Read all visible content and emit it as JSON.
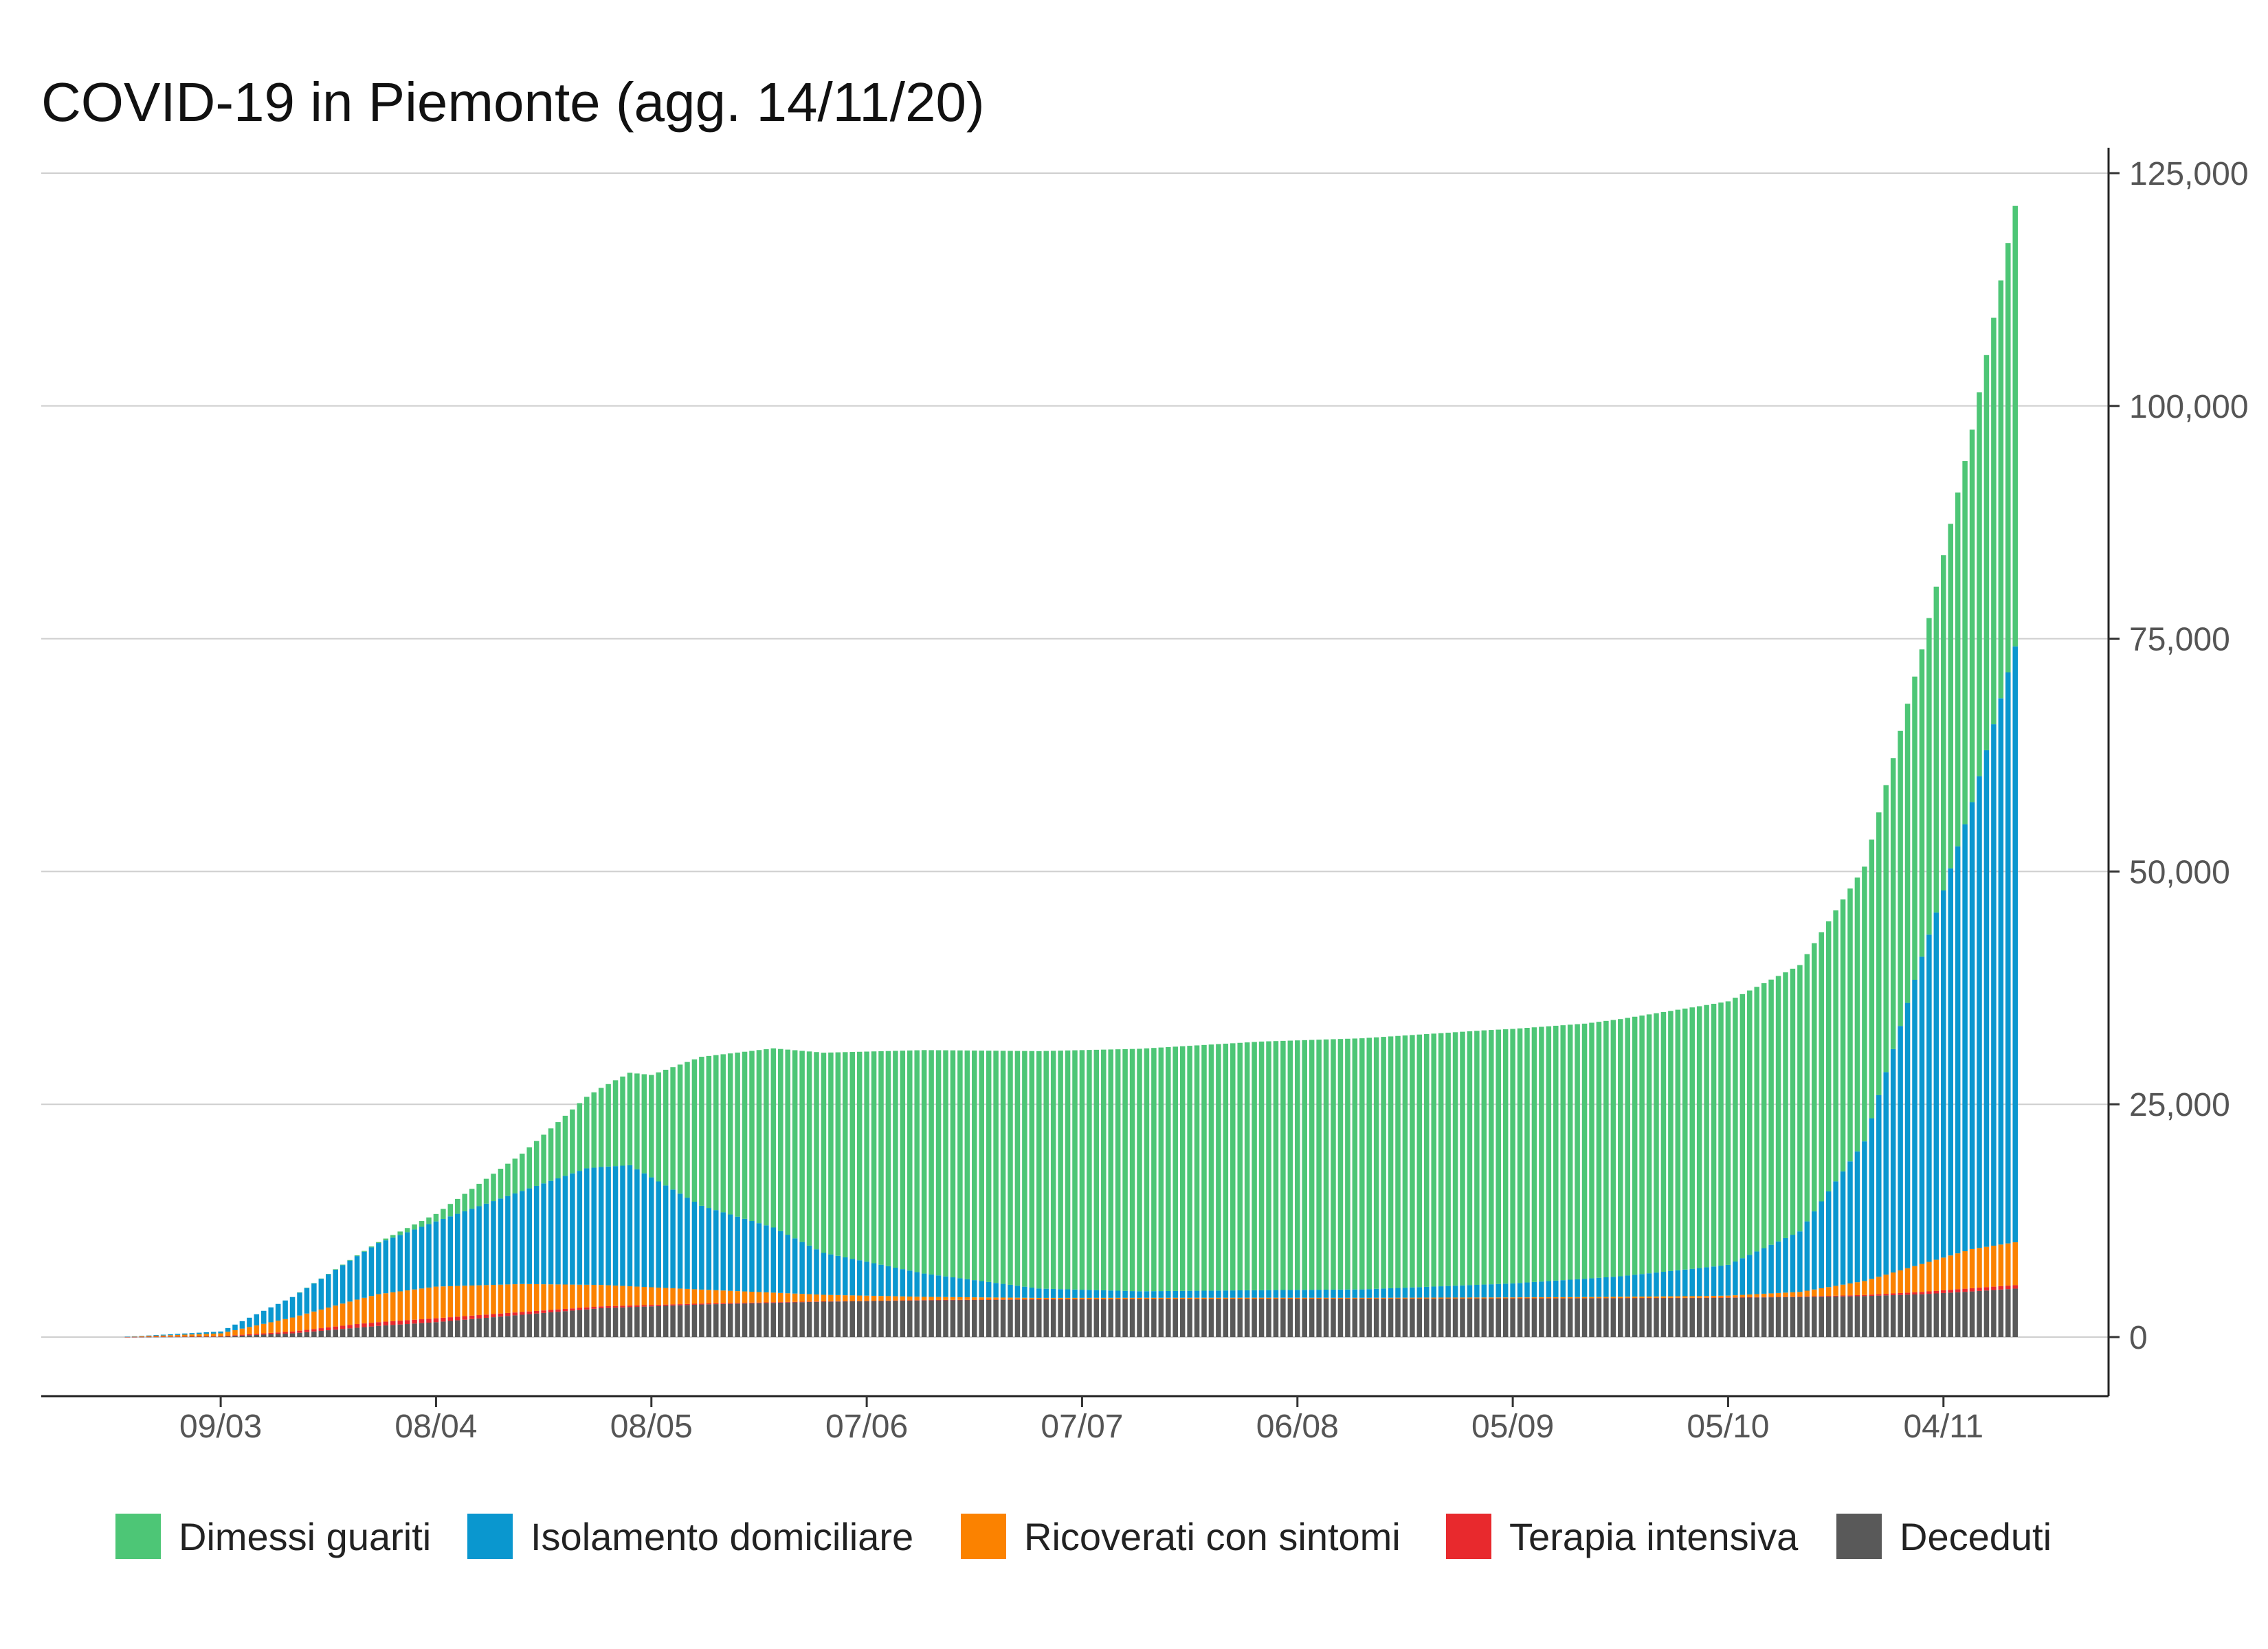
{
  "chart_data": {
    "type": "bar",
    "stacked": true,
    "title": "COVID-19 in Piemonte (agg. 14/11/20)",
    "xlabel": "",
    "ylabel": "",
    "y_axis_position": "right",
    "ylim": [
      0,
      125000
    ],
    "yticks": [
      0,
      25000,
      50000,
      75000,
      100000,
      125000
    ],
    "ytick_labels": [
      "0",
      "25,000",
      "50,000",
      "75,000",
      "100,000",
      "125,000"
    ],
    "xlim": [
      "2020-02-13",
      "2020-11-27"
    ],
    "x_ticks": [
      {
        "date": "2020-03-09",
        "label": "09/03"
      },
      {
        "date": "2020-04-08",
        "label": "08/04"
      },
      {
        "date": "2020-05-08",
        "label": "08/05"
      },
      {
        "date": "2020-06-07",
        "label": "07/06"
      },
      {
        "date": "2020-07-07",
        "label": "07/07"
      },
      {
        "date": "2020-08-06",
        "label": "06/08"
      },
      {
        "date": "2020-09-05",
        "label": "05/09"
      },
      {
        "date": "2020-10-05",
        "label": "05/10"
      },
      {
        "date": "2020-11-04",
        "label": "04/11"
      }
    ],
    "grid": true,
    "legend_position": "bottom",
    "series": [
      {
        "name": "Deceduti",
        "color": "#595959",
        "points": [
          [
            "2020-02-24",
            0
          ],
          [
            "2020-03-09",
            50
          ],
          [
            "2020-03-19",
            400
          ],
          [
            "2020-03-31",
            1200
          ],
          [
            "2020-04-08",
            1600
          ],
          [
            "2020-04-20",
            2400
          ],
          [
            "2020-05-01",
            3100
          ],
          [
            "2020-05-15",
            3500
          ],
          [
            "2020-06-01",
            3800
          ],
          [
            "2020-06-15",
            3950
          ],
          [
            "2020-07-01",
            4050
          ],
          [
            "2020-08-01",
            4120
          ],
          [
            "2020-09-01",
            4150
          ],
          [
            "2020-10-01",
            4200
          ],
          [
            "2020-10-15",
            4300
          ],
          [
            "2020-10-24",
            4400
          ],
          [
            "2020-11-01",
            4600
          ],
          [
            "2020-11-08",
            4900
          ],
          [
            "2020-11-14",
            5200
          ]
        ]
      },
      {
        "name": "Terapia intensiva",
        "color": "#e8292d",
        "points": [
          [
            "2020-02-24",
            0
          ],
          [
            "2020-03-09",
            50
          ],
          [
            "2020-03-19",
            200
          ],
          [
            "2020-03-28",
            400
          ],
          [
            "2020-04-08",
            420
          ],
          [
            "2020-04-20",
            300
          ],
          [
            "2020-05-01",
            200
          ],
          [
            "2020-05-15",
            100
          ],
          [
            "2020-06-01",
            40
          ],
          [
            "2020-06-15",
            20
          ],
          [
            "2020-07-01",
            10
          ],
          [
            "2020-08-15",
            5
          ],
          [
            "2020-09-15",
            10
          ],
          [
            "2020-10-05",
            25
          ],
          [
            "2020-10-15",
            50
          ],
          [
            "2020-10-24",
            120
          ],
          [
            "2020-11-01",
            250
          ],
          [
            "2020-11-08",
            350
          ],
          [
            "2020-11-14",
            380
          ]
        ]
      },
      {
        "name": "Ricoverati con sintomi",
        "color": "#fb8200",
        "points": [
          [
            "2020-02-24",
            0
          ],
          [
            "2020-03-09",
            300
          ],
          [
            "2020-03-19",
            1500
          ],
          [
            "2020-03-31",
            3000
          ],
          [
            "2020-04-08",
            3400
          ],
          [
            "2020-04-20",
            3000
          ],
          [
            "2020-05-01",
            2300
          ],
          [
            "2020-05-15",
            1500
          ],
          [
            "2020-06-01",
            700
          ],
          [
            "2020-06-15",
            350
          ],
          [
            "2020-07-01",
            150
          ],
          [
            "2020-08-15",
            80
          ],
          [
            "2020-09-15",
            110
          ],
          [
            "2020-10-05",
            200
          ],
          [
            "2020-10-15",
            500
          ],
          [
            "2020-10-24",
            1500
          ],
          [
            "2020-11-01",
            3000
          ],
          [
            "2020-11-08",
            4200
          ],
          [
            "2020-11-14",
            4600
          ]
        ]
      },
      {
        "name": "Isolamento domiciliare",
        "color": "#0a97cf",
        "points": [
          [
            "2020-02-24",
            0
          ],
          [
            "2020-03-09",
            200
          ],
          [
            "2020-03-19",
            2200
          ],
          [
            "2020-03-31",
            5500
          ],
          [
            "2020-04-08",
            7000
          ],
          [
            "2020-04-20",
            10000
          ],
          [
            "2020-04-29",
            12500
          ],
          [
            "2020-05-05",
            13000
          ],
          [
            "2020-05-15",
            9000
          ],
          [
            "2020-05-25",
            7000
          ],
          [
            "2020-06-01",
            4500
          ],
          [
            "2020-06-15",
            2500
          ],
          [
            "2020-07-01",
            1000
          ],
          [
            "2020-07-15",
            700
          ],
          [
            "2020-08-15",
            900
          ],
          [
            "2020-09-05",
            1500
          ],
          [
            "2020-09-20",
            2200
          ],
          [
            "2020-10-05",
            3300
          ],
          [
            "2020-10-15",
            6500
          ],
          [
            "2020-10-24",
            15000
          ],
          [
            "2020-11-01",
            33000
          ],
          [
            "2020-11-08",
            48000
          ],
          [
            "2020-11-14",
            64000
          ]
        ]
      },
      {
        "name": "Dimessi guariti",
        "color": "#4dc676",
        "points": [
          [
            "2020-02-24",
            0
          ],
          [
            "2020-03-09",
            0
          ],
          [
            "2020-03-19",
            0
          ],
          [
            "2020-03-31",
            100
          ],
          [
            "2020-04-08",
            800
          ],
          [
            "2020-04-20",
            4000
          ],
          [
            "2020-05-01",
            8500
          ],
          [
            "2020-05-08",
            11000
          ],
          [
            "2020-05-15",
            16000
          ],
          [
            "2020-06-01",
            21500
          ],
          [
            "2020-06-15",
            24000
          ],
          [
            "2020-07-01",
            25500
          ],
          [
            "2020-08-01",
            26700
          ],
          [
            "2020-09-01",
            27300
          ],
          [
            "2020-09-15",
            27400
          ],
          [
            "2020-10-05",
            28300
          ],
          [
            "2020-10-15",
            28600
          ],
          [
            "2020-10-24",
            29500
          ],
          [
            "2020-11-01",
            33000
          ],
          [
            "2020-11-08",
            40000
          ],
          [
            "2020-11-14",
            47300
          ]
        ]
      }
    ]
  },
  "legend": {
    "items": [
      {
        "label": "Dimessi guariti",
        "color": "#4dc676"
      },
      {
        "label": "Isolamento domiciliare",
        "color": "#0a97cf"
      },
      {
        "label": "Ricoverati con sintomi",
        "color": "#fb8200"
      },
      {
        "label": "Terapia intensiva",
        "color": "#e8292d"
      },
      {
        "label": "Deceduti",
        "color": "#595959"
      }
    ]
  }
}
